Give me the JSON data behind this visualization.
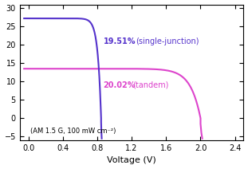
{
  "xlabel": "Voltage (V)",
  "xlim": [
    -0.1,
    2.5
  ],
  "ylim": [
    -6,
    31
  ],
  "yticks": [
    -5,
    0,
    5,
    10,
    15,
    20,
    25,
    30
  ],
  "xticks": [
    0.0,
    0.4,
    0.8,
    1.2,
    1.6,
    2.0,
    2.4
  ],
  "single_junction_color": "#5533CC",
  "tandem_color": "#DD44CC",
  "label_single_pct": "19.51%",
  "label_single_type": "(single-junction)",
  "label_tandem_pct": "20.02%",
  "label_tandem_type": "(tandem)",
  "condition_label": "(AM 1.5 G, 100 mW cm⁻²)",
  "bg_color": "#ffffff",
  "figsize": [
    3.11,
    2.12
  ],
  "dpi": 100,
  "jsc_sj": 27.2,
  "voc_sj": 0.845,
  "jsc_td": 13.5,
  "voc_td": 2.0
}
